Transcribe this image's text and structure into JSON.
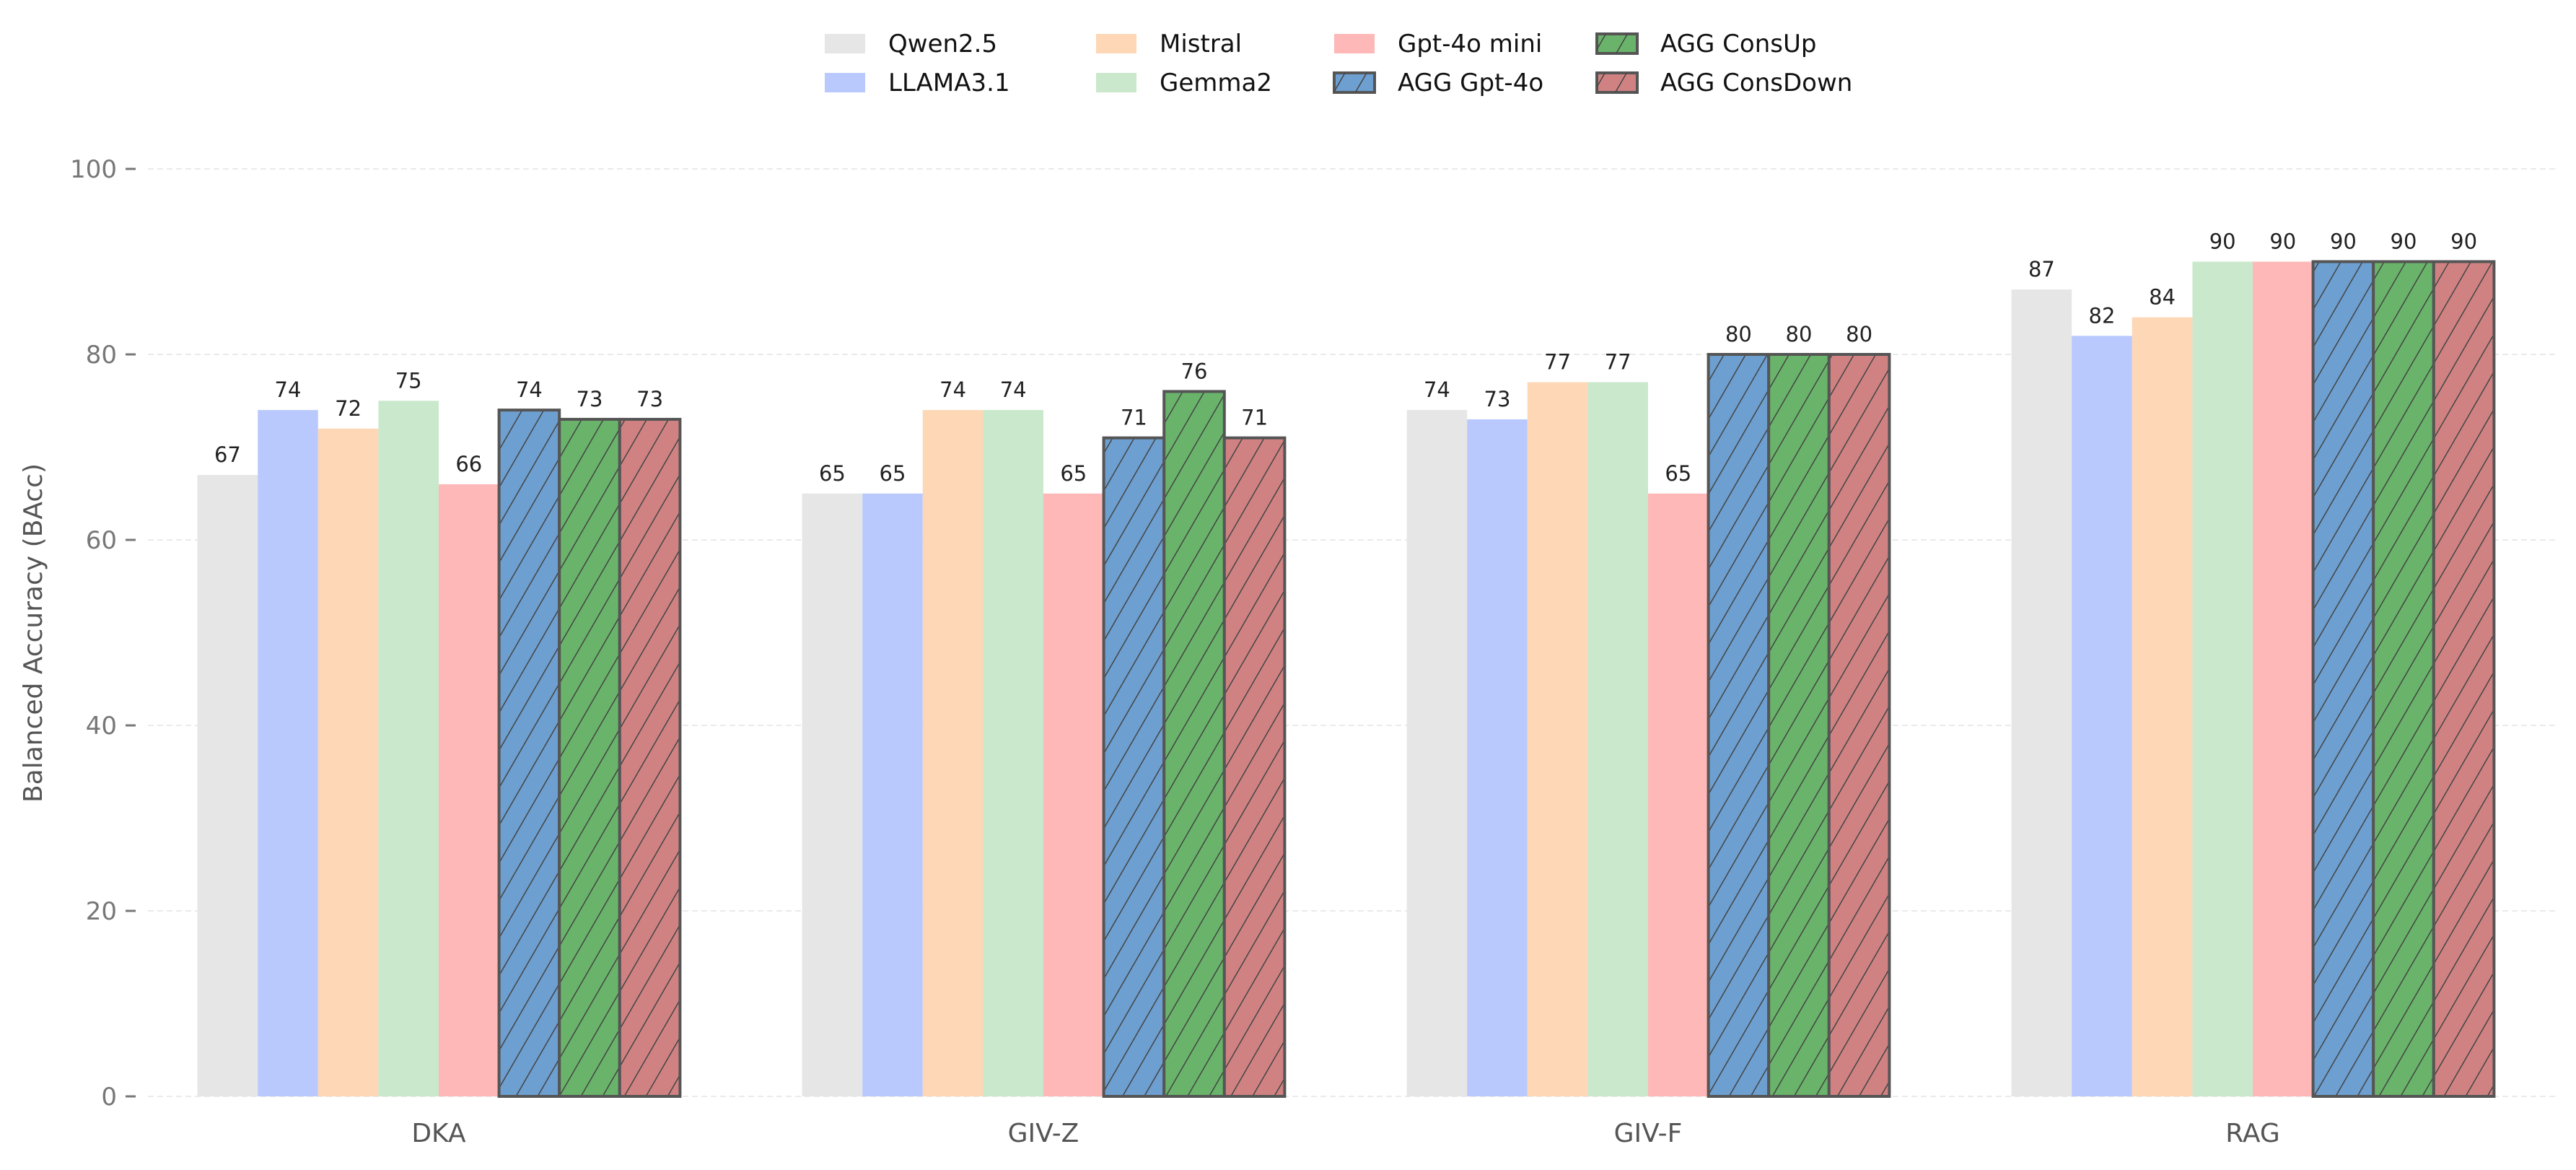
{
  "chart_data": {
    "type": "bar",
    "title": "",
    "xlabel": "",
    "ylabel": "Balanced Accuracy (BAcc)",
    "ylim": [
      0,
      100
    ],
    "yticks": [
      0,
      20,
      40,
      60,
      80,
      100
    ],
    "grid": true,
    "legend_position": "top-center",
    "categories": [
      "DKA",
      "GIV-Z",
      "GIV-F",
      "RAG"
    ],
    "series": [
      {
        "name": "Qwen2.5",
        "values": [
          67,
          65,
          74,
          87
        ],
        "color": "#e6e6e6",
        "hatched": false
      },
      {
        "name": "LLAMA3.1",
        "values": [
          74,
          65,
          73,
          82
        ],
        "color": "#b9c9fd",
        "hatched": false
      },
      {
        "name": "Mistral",
        "values": [
          72,
          74,
          77,
          84
        ],
        "color": "#fdd7b6",
        "hatched": false
      },
      {
        "name": "Gemma2",
        "values": [
          75,
          74,
          77,
          90
        ],
        "color": "#cae8cb",
        "hatched": false
      },
      {
        "name": "Gpt-4o mini",
        "values": [
          66,
          65,
          65,
          90
        ],
        "color": "#feb8b8",
        "hatched": false
      },
      {
        "name": "AGG Gpt-4o",
        "values": [
          74,
          71,
          80,
          90
        ],
        "color": "#6d9fd0",
        "hatched": true
      },
      {
        "name": "AGG ConsUp",
        "values": [
          73,
          76,
          80,
          90
        ],
        "color": "#69b46a",
        "hatched": true
      },
      {
        "name": "AGG ConsDown",
        "values": [
          73,
          71,
          80,
          90
        ],
        "color": "#d08282",
        "hatched": true
      }
    ]
  }
}
